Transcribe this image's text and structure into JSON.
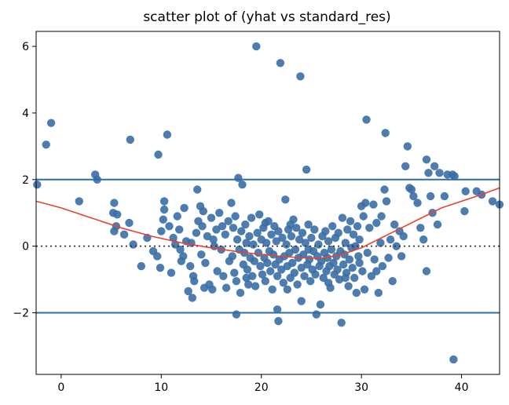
{
  "chart_data": {
    "type": "scatter",
    "title": "scatter plot of (yhat vs standard_res)",
    "xlabel": "",
    "ylabel": "",
    "xlim": [
      -2.5,
      43.8
    ],
    "ylim": [
      -3.85,
      6.45
    ],
    "x_ticks": [
      0,
      10,
      20,
      30,
      40
    ],
    "y_ticks": [
      -2,
      0,
      2,
      4,
      6
    ],
    "x_tick_labels": [
      "0",
      "10",
      "20",
      "30",
      "40"
    ],
    "y_tick_labels": [
      "−2",
      "0",
      "2",
      "4",
      "6"
    ],
    "grid": false,
    "legend": "none",
    "point_color": "#3a6ea5",
    "lowess_color": "#e8432e",
    "hline_color": "#2e6ca4",
    "zero_line_color": "#333333",
    "hlines": [
      2,
      -2
    ],
    "zero_line": 0,
    "points": [
      [
        -2.4,
        1.85
      ],
      [
        -1.5,
        3.05
      ],
      [
        -1.0,
        3.7
      ],
      [
        1.8,
        1.35
      ],
      [
        3.4,
        2.15
      ],
      [
        3.6,
        2.0
      ],
      [
        5.3,
        1.3
      ],
      [
        5.2,
        1.0
      ],
      [
        5.6,
        0.95
      ],
      [
        5.5,
        0.6
      ],
      [
        5.3,
        0.45
      ],
      [
        6.3,
        0.35
      ],
      [
        6.9,
        3.2
      ],
      [
        6.8,
        0.7
      ],
      [
        7.2,
        0.05
      ],
      [
        8.0,
        -0.6
      ],
      [
        8.6,
        0.25
      ],
      [
        9.2,
        -0.15
      ],
      [
        9.6,
        -0.3
      ],
      [
        9.9,
        -0.65
      ],
      [
        9.7,
        2.75
      ],
      [
        10.0,
        0.45
      ],
      [
        10.2,
        0.8
      ],
      [
        10.3,
        1.1
      ],
      [
        10.3,
        1.35
      ],
      [
        10.6,
        3.35
      ],
      [
        10.8,
        0.6
      ],
      [
        11.0,
        -0.8
      ],
      [
        11.2,
        0.25
      ],
      [
        11.4,
        0.05
      ],
      [
        11.6,
        0.9
      ],
      [
        11.8,
        0.5
      ],
      [
        11.9,
        -0.1
      ],
      [
        12.2,
        -0.3
      ],
      [
        12.3,
        1.15
      ],
      [
        12.5,
        0.15
      ],
      [
        12.7,
        -1.35
      ],
      [
        12.9,
        -0.6
      ],
      [
        13.1,
        -1.55
      ],
      [
        13.2,
        -0.9
      ],
      [
        13.3,
        -1.05
      ],
      [
        13.5,
        0.4
      ],
      [
        13.6,
        1.7
      ],
      [
        13.7,
        0.75
      ],
      [
        13.9,
        1.2
      ],
      [
        14.0,
        -0.25
      ],
      [
        14.1,
        0.6
      ],
      [
        14.2,
        1.05
      ],
      [
        14.4,
        -0.5
      ],
      [
        14.6,
        0.3
      ],
      [
        14.8,
        -1.15
      ],
      [
        15.0,
        0.85
      ],
      [
        15.1,
        -1.3
      ],
      [
        15.3,
        0.0
      ],
      [
        15.5,
        0.5
      ],
      [
        15.6,
        -0.75
      ],
      [
        15.8,
        1.0
      ],
      [
        16.0,
        -0.1
      ],
      [
        16.2,
        -0.9
      ],
      [
        16.4,
        0.35
      ],
      [
        16.5,
        -1.25
      ],
      [
        16.7,
        0.75
      ],
      [
        16.8,
        -0.45
      ],
      [
        17.0,
        1.3
      ],
      [
        17.1,
        -0.3
      ],
      [
        17.2,
        0.55
      ],
      [
        17.3,
        -0.8
      ],
      [
        17.4,
        0.9
      ],
      [
        17.5,
        -1.05
      ],
      [
        17.6,
        0.2
      ],
      [
        17.7,
        2.05
      ],
      [
        17.8,
        -0.1
      ],
      [
        17.9,
        -1.4
      ],
      [
        18.0,
        0.45
      ],
      [
        18.1,
        1.85
      ],
      [
        18.2,
        -0.55
      ],
      [
        18.3,
        -0.2
      ],
      [
        18.4,
        0.65
      ],
      [
        18.5,
        0.1
      ],
      [
        18.6,
        -0.7
      ],
      [
        18.7,
        -1.15
      ],
      [
        18.8,
        0.3
      ],
      [
        18.9,
        -0.35
      ],
      [
        19.0,
        0.85
      ],
      [
        19.1,
        -0.9
      ],
      [
        19.2,
        0.05
      ],
      [
        19.3,
        -0.45
      ],
      [
        19.4,
        -1.2
      ],
      [
        19.5,
        6.0
      ],
      [
        19.6,
        0.4
      ],
      [
        19.7,
        -0.2
      ],
      [
        19.8,
        0.95
      ],
      [
        19.9,
        -0.6
      ],
      [
        20.0,
        0.2
      ],
      [
        20.1,
        -0.85
      ],
      [
        20.2,
        0.55
      ],
      [
        20.3,
        -0.35
      ],
      [
        20.4,
        -1.05
      ],
      [
        20.5,
        0.1
      ],
      [
        20.6,
        -0.5
      ],
      [
        20.7,
        0.75
      ],
      [
        20.8,
        -0.15
      ],
      [
        20.9,
        -0.75
      ],
      [
        21.0,
        0.35
      ],
      [
        21.1,
        -1.3
      ],
      [
        21.2,
        -0.25
      ],
      [
        21.3,
        0.6
      ],
      [
        21.4,
        -0.55
      ],
      [
        21.5,
        0.15
      ],
      [
        21.6,
        -0.9
      ],
      [
        21.7,
        0.45
      ],
      [
        21.8,
        -0.4
      ],
      [
        21.9,
        5.5
      ],
      [
        22.0,
        -0.7
      ],
      [
        22.1,
        0.25
      ],
      [
        22.2,
        -1.1
      ],
      [
        22.3,
        -0.3
      ],
      [
        22.4,
        1.4
      ],
      [
        22.5,
        0.05
      ],
      [
        22.6,
        -0.6
      ],
      [
        22.7,
        0.5
      ],
      [
        22.8,
        -0.2
      ],
      [
        22.9,
        -0.95
      ],
      [
        23.0,
        0.3
      ],
      [
        23.1,
        -0.5
      ],
      [
        23.2,
        0.8
      ],
      [
        23.3,
        -0.8
      ],
      [
        23.4,
        -0.1
      ],
      [
        23.5,
        0.55
      ],
      [
        23.6,
        -1.15
      ],
      [
        23.7,
        -0.35
      ],
      [
        23.8,
        0.2
      ],
      [
        23.9,
        5.1
      ],
      [
        24.0,
        -0.65
      ],
      [
        24.1,
        0.4
      ],
      [
        24.2,
        -0.25
      ],
      [
        24.3,
        -0.9
      ],
      [
        24.4,
        0.1
      ],
      [
        24.5,
        2.3
      ],
      [
        24.6,
        -0.55
      ],
      [
        24.7,
        0.65
      ],
      [
        24.8,
        -0.4
      ],
      [
        24.9,
        -1.05
      ],
      [
        25.0,
        0.25
      ],
      [
        25.1,
        -0.7
      ],
      [
        25.2,
        -0.15
      ],
      [
        25.3,
        0.5
      ],
      [
        25.4,
        -0.85
      ],
      [
        25.5,
        -2.05
      ],
      [
        25.6,
        -0.3
      ],
      [
        25.7,
        0.05
      ],
      [
        25.8,
        -0.6
      ],
      [
        25.9,
        -1.75
      ],
      [
        26.0,
        -0.45
      ],
      [
        26.1,
        0.3
      ],
      [
        26.2,
        -0.95
      ],
      [
        26.3,
        -0.2
      ],
      [
        26.4,
        0.45
      ],
      [
        26.5,
        -0.75
      ],
      [
        26.6,
        -0.35
      ],
      [
        26.7,
        0.15
      ],
      [
        26.8,
        -0.6
      ],
      [
        26.9,
        -1.25
      ],
      [
        27.0,
        -0.1
      ],
      [
        27.1,
        0.6
      ],
      [
        27.2,
        -0.5
      ],
      [
        27.3,
        -0.85
      ],
      [
        27.4,
        0.25
      ],
      [
        27.5,
        -0.3
      ],
      [
        27.6,
        -0.7
      ],
      [
        27.7,
        0.4
      ],
      [
        27.8,
        -1.0
      ],
      [
        27.9,
        -0.15
      ],
      [
        28.0,
        -2.3
      ],
      [
        28.1,
        0.85
      ],
      [
        28.2,
        -0.55
      ],
      [
        28.3,
        -0.25
      ],
      [
        28.4,
        0.1
      ],
      [
        28.5,
        -0.8
      ],
      [
        28.6,
        0.5
      ],
      [
        28.7,
        -1.2
      ],
      [
        28.8,
        -0.4
      ],
      [
        28.9,
        0.75
      ],
      [
        29.0,
        -0.05
      ],
      [
        29.1,
        -0.65
      ],
      [
        29.2,
        0.35
      ],
      [
        29.3,
        -0.95
      ],
      [
        29.4,
        0.0
      ],
      [
        29.5,
        -1.4
      ],
      [
        29.6,
        0.6
      ],
      [
        29.7,
        -0.3
      ],
      [
        29.8,
        0.2
      ],
      [
        30.0,
        1.2
      ],
      [
        30.1,
        -0.75
      ],
      [
        30.2,
        0.9
      ],
      [
        30.3,
        -1.3
      ],
      [
        30.4,
        1.3
      ],
      [
        30.5,
        3.8
      ],
      [
        30.6,
        -0.2
      ],
      [
        30.8,
        0.55
      ],
      [
        31.0,
        -0.9
      ],
      [
        31.2,
        1.25
      ],
      [
        31.3,
        -0.4
      ],
      [
        31.5,
        0.7
      ],
      [
        31.7,
        -1.4
      ],
      [
        31.9,
        0.1
      ],
      [
        32.0,
        0.9
      ],
      [
        32.1,
        -0.6
      ],
      [
        32.3,
        1.7
      ],
      [
        32.4,
        3.4
      ],
      [
        32.5,
        1.35
      ],
      [
        32.7,
        -0.35
      ],
      [
        32.9,
        0.2
      ],
      [
        33.1,
        -1.05
      ],
      [
        33.3,
        0.65
      ],
      [
        33.5,
        0.0
      ],
      [
        33.8,
        0.45
      ],
      [
        34.0,
        -0.3
      ],
      [
        34.2,
        0.3
      ],
      [
        34.4,
        2.4
      ],
      [
        34.6,
        3.0
      ],
      [
        34.8,
        1.75
      ],
      [
        35.0,
        1.7
      ],
      [
        35.2,
        1.5
      ],
      [
        35.6,
        1.3
      ],
      [
        35.9,
        0.55
      ],
      [
        36.2,
        0.2
      ],
      [
        36.5,
        -0.75
      ],
      [
        36.5,
        2.6
      ],
      [
        36.7,
        2.2
      ],
      [
        36.9,
        1.5
      ],
      [
        37.1,
        1.0
      ],
      [
        37.3,
        2.4
      ],
      [
        37.6,
        0.65
      ],
      [
        37.8,
        2.2
      ],
      [
        38.3,
        1.5
      ],
      [
        38.6,
        2.15
      ],
      [
        39.1,
        2.15
      ],
      [
        39.3,
        2.1
      ],
      [
        39.2,
        -3.4
      ],
      [
        40.3,
        1.05
      ],
      [
        40.4,
        1.65
      ],
      [
        41.5,
        1.65
      ],
      [
        42.0,
        1.55
      ],
      [
        43.1,
        1.35
      ],
      [
        43.8,
        1.25
      ],
      [
        12.0,
        -0.45
      ],
      [
        13.0,
        0.1
      ],
      [
        15.2,
        0.2
      ],
      [
        16.1,
        0.6
      ],
      [
        18.5,
        -0.95
      ],
      [
        20.4,
        0.7
      ],
      [
        22.9,
        0.65
      ],
      [
        24.7,
        -0.1
      ],
      [
        26.7,
        -1.1
      ],
      [
        28.4,
        -0.95
      ],
      [
        29.8,
        -0.5
      ],
      [
        31.5,
        -0.75
      ],
      [
        21.6,
        -1.9
      ],
      [
        21.7,
        -2.25
      ],
      [
        22.6,
        -1.3
      ],
      [
        24.0,
        -1.65
      ],
      [
        17.5,
        -2.05
      ],
      [
        14.3,
        -1.25
      ]
    ],
    "lowess": [
      [
        -2.5,
        1.35
      ],
      [
        0,
        1.15
      ],
      [
        3,
        0.85
      ],
      [
        6,
        0.55
      ],
      [
        9,
        0.3
      ],
      [
        12,
        0.1
      ],
      [
        15,
        -0.05
      ],
      [
        18,
        -0.18
      ],
      [
        21,
        -0.28
      ],
      [
        24,
        -0.35
      ],
      [
        26,
        -0.36
      ],
      [
        28,
        -0.25
      ],
      [
        30,
        -0.05
      ],
      [
        32,
        0.25
      ],
      [
        34,
        0.55
      ],
      [
        36,
        0.85
      ],
      [
        38,
        1.15
      ],
      [
        40,
        1.35
      ],
      [
        42,
        1.55
      ],
      [
        43.8,
        1.75
      ]
    ]
  }
}
